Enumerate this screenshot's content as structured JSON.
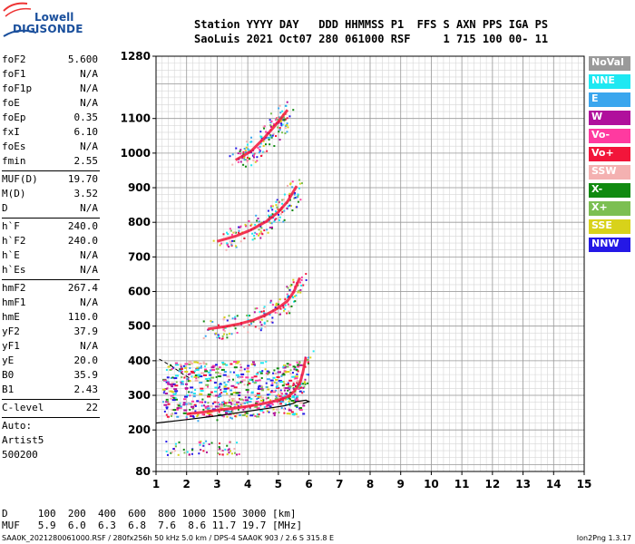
{
  "logo": {
    "line1": "Lowell",
    "line2": "DIGISONDE"
  },
  "header": {
    "line1": "Station YYYY DAY   DDD HHMMSS P1  FFS S AXN PPS IGA PS",
    "line2": "SaoLuis 2021 Oct07 280 061000 RSF     1 715 100 00- 11"
  },
  "params": [
    {
      "label": "foF2",
      "value": "5.600"
    },
    {
      "label": "foF1",
      "value": "N/A"
    },
    {
      "label": "foF1p",
      "value": "N/A"
    },
    {
      "label": "foE",
      "value": "N/A"
    },
    {
      "label": "foEp",
      "value": "0.35"
    },
    {
      "label": "fxI",
      "value": "6.10"
    },
    {
      "label": "foEs",
      "value": "N/A"
    },
    {
      "label": "fmin",
      "value": "2.55"
    },
    {
      "sep": true
    },
    {
      "label": "MUF(D)",
      "value": "19.70"
    },
    {
      "label": "M(D)",
      "value": "3.52"
    },
    {
      "label": "D",
      "value": "N/A"
    },
    {
      "sep": true
    },
    {
      "label": "h`F",
      "value": "240.0"
    },
    {
      "label": "h`F2",
      "value": "240.0"
    },
    {
      "label": "h`E",
      "value": "N/A"
    },
    {
      "label": "h`Es",
      "value": "N/A"
    },
    {
      "sep": true
    },
    {
      "label": "hmF2",
      "value": "267.4"
    },
    {
      "label": "hmF1",
      "value": "N/A"
    },
    {
      "label": "hmE",
      "value": "110.0"
    },
    {
      "label": "yF2",
      "value": "37.9"
    },
    {
      "label": "yF1",
      "value": "N/A"
    },
    {
      "label": "yE",
      "value": "20.0"
    },
    {
      "label": "B0",
      "value": "35.9"
    },
    {
      "label": "B1",
      "value": "2.43"
    },
    {
      "sep": true
    },
    {
      "label": "C-level",
      "value": "22"
    },
    {
      "sep": true
    },
    {
      "text": "Auto:"
    },
    {
      "text": "Artist5"
    },
    {
      "text": "500200"
    }
  ],
  "legend": [
    {
      "label": "NoVal",
      "color": "#9a9a9a"
    },
    {
      "label": "NNE",
      "color": "#1ee8f2"
    },
    {
      "label": "E",
      "color": "#3aa6ee"
    },
    {
      "label": "W",
      "color": "#b0109c"
    },
    {
      "label": "Vo-",
      "color": "#ff3aa0"
    },
    {
      "label": "Vo+",
      "color": "#f2153a"
    },
    {
      "label": "SSW",
      "color": "#f4b1b1"
    },
    {
      "label": "X-",
      "color": "#108a10"
    },
    {
      "label": "X+",
      "color": "#7cbf52"
    },
    {
      "label": "SSE",
      "color": "#d8d21a"
    },
    {
      "label": "NNW",
      "color": "#2418e6"
    }
  ],
  "chart_data": {
    "type": "scatter",
    "xlim": [
      1,
      15
    ],
    "ylim": [
      80,
      1280
    ],
    "xticks": [
      "1",
      "2",
      "3",
      "4",
      "5",
      "6",
      "7",
      "8",
      "9",
      "10",
      "11",
      "12",
      "13",
      "14",
      "15"
    ],
    "yticks": [
      "80",
      "200",
      "300",
      "400",
      "500",
      "600",
      "700",
      "800",
      "900",
      "1000",
      "1100",
      "1280"
    ],
    "grid": true,
    "traces": [
      {
        "name": "F2 O-trace",
        "color": "#f2153a",
        "points": [
          [
            2.0,
            246
          ],
          [
            2.5,
            251
          ],
          [
            3.0,
            257
          ],
          [
            3.5,
            262
          ],
          [
            4.0,
            268
          ],
          [
            4.5,
            276
          ],
          [
            5.0,
            286
          ],
          [
            5.3,
            296
          ],
          [
            5.5,
            310
          ],
          [
            5.7,
            335
          ],
          [
            5.8,
            365
          ],
          [
            5.9,
            410
          ]
        ]
      },
      {
        "name": "2F2 trace",
        "color": "#f2153a",
        "points": [
          [
            2.7,
            492
          ],
          [
            3.2,
            498
          ],
          [
            3.7,
            506
          ],
          [
            4.2,
            518
          ],
          [
            4.6,
            533
          ],
          [
            5.0,
            553
          ],
          [
            5.3,
            573
          ],
          [
            5.5,
            598
          ],
          [
            5.7,
            640
          ]
        ]
      },
      {
        "name": "3F2 trace",
        "color": "#f2153a",
        "points": [
          [
            3.0,
            745
          ],
          [
            3.6,
            760
          ],
          [
            4.1,
            778
          ],
          [
            4.6,
            802
          ],
          [
            5.0,
            830
          ],
          [
            5.3,
            860
          ],
          [
            5.6,
            905
          ]
        ]
      },
      {
        "name": "4F2 trace",
        "color": "#f2153a",
        "points": [
          [
            3.6,
            980
          ],
          [
            4.1,
            1005
          ],
          [
            4.5,
            1040
          ],
          [
            4.9,
            1080
          ],
          [
            5.3,
            1125
          ]
        ]
      }
    ],
    "profile": [
      [
        1.0,
        220
      ],
      [
        2.0,
        230
      ],
      [
        3.0,
        241
      ],
      [
        4.0,
        254
      ],
      [
        4.7,
        263
      ],
      [
        5.2,
        270
      ],
      [
        5.5,
        277
      ],
      [
        5.6,
        282
      ]
    ],
    "profile_dashed": [
      [
        5.6,
        282
      ],
      [
        5.9,
        286
      ],
      [
        6.0,
        282
      ],
      [
        5.8,
        276
      ]
    ],
    "es_trace": [
      [
        1.1,
        405
      ],
      [
        1.5,
        385
      ],
      [
        1.9,
        360
      ],
      [
        2.1,
        350
      ]
    ]
  },
  "freq_table": {
    "line1": "D     100  200  400  600  800 1000 1500 3000 [km]",
    "line2": "MUF   5.9  6.0  6.3  6.8  7.6  8.6 11.7 19.7 [MHz]"
  },
  "footer": "SAA0K_2021280061000.RSF / 280fx256h 50 kHz 5.0 km / DPS-4 SAA0K 903 / 2.6 S 315.8 E",
  "version": "Ion2Png 1.3.17"
}
